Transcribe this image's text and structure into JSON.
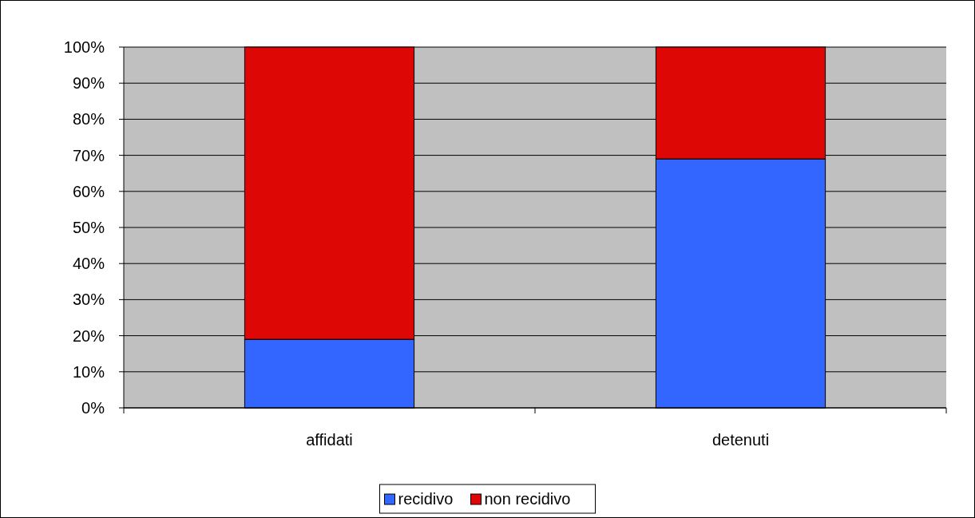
{
  "chart_data": {
    "type": "bar",
    "stacked": true,
    "categories": [
      "affidati",
      "detenuti"
    ],
    "series": [
      {
        "name": "recidivo",
        "color": "#3366ff",
        "values": [
          19,
          69
        ]
      },
      {
        "name": "non recidivo",
        "color": "#dd0806",
        "values": [
          81,
          31
        ]
      }
    ],
    "ylim": [
      0,
      100
    ],
    "yticks": [
      {
        "value": 0,
        "label": "0%"
      },
      {
        "value": 10,
        "label": "10%"
      },
      {
        "value": 20,
        "label": "20%"
      },
      {
        "value": 30,
        "label": "30%"
      },
      {
        "value": 40,
        "label": "40%"
      },
      {
        "value": 50,
        "label": "50%"
      },
      {
        "value": 60,
        "label": "60%"
      },
      {
        "value": 70,
        "label": "70%"
      },
      {
        "value": 80,
        "label": "80%"
      },
      {
        "value": 90,
        "label": "90%"
      },
      {
        "value": 100,
        "label": "100%"
      }
    ],
    "grid": "y",
    "legend": "bottom"
  }
}
